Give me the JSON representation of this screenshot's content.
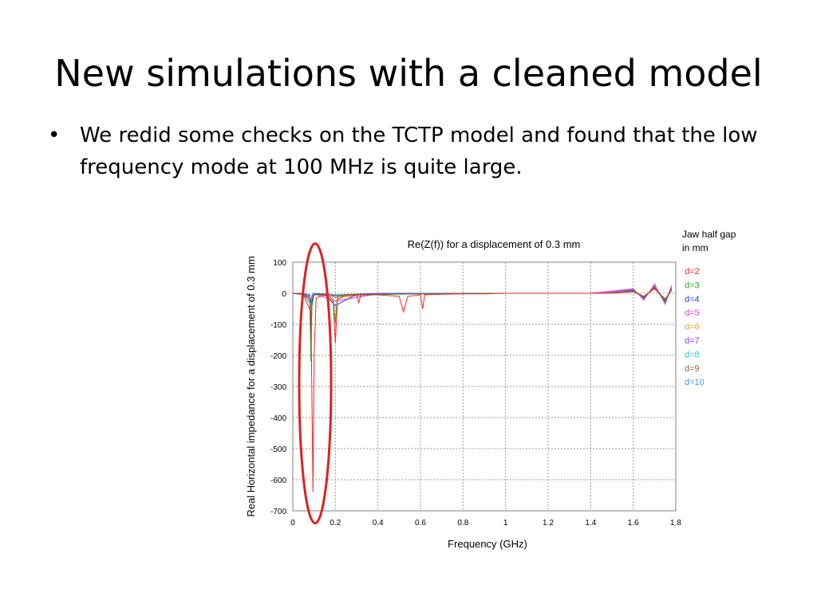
{
  "slide": {
    "title": "New simulations with a cleaned model",
    "bullets": [
      "We redid some checks on the TCTP model and found that the low frequency mode at 100 MHz is quite large."
    ],
    "bullet_marker": "•"
  },
  "chart_data": {
    "type": "line",
    "title": "Re(Z(f)) for a displacement of 0.3 mm",
    "xlabel": "Frequency (GHz)",
    "ylabel": "Real Horizontal impedance for a displacement of 0.3 mm",
    "xlim": [
      0,
      1.8
    ],
    "ylim": [
      -700,
      100
    ],
    "xticks": [
      0,
      0.2,
      0.4,
      0.6,
      0.8,
      1,
      1.2,
      1.4,
      1.6,
      1.8
    ],
    "xtick_labels": [
      "0",
      "0.2",
      "0.4",
      "0.6",
      "0.8",
      "1",
      "1.2",
      "1.4",
      "1.6",
      "1.8"
    ],
    "yticks": [
      100,
      0,
      -100,
      -200,
      -300,
      -400,
      -500,
      -600,
      -700
    ],
    "ytick_labels": [
      "100",
      "0",
      "-100",
      "-200",
      "-300",
      "-400",
      "-500",
      "-600",
      "-700"
    ],
    "grid": true,
    "legend_title": "Jaw half gap\nin mm",
    "legend_title_lines": [
      "Jaw half gap",
      "in mm"
    ],
    "legend_position": "right",
    "highlight": {
      "shape": "ellipse",
      "color": "#e02020",
      "x_range": [
        0.03,
        0.18
      ],
      "y_range": [
        -740,
        160
      ]
    },
    "series": [
      {
        "name": "d=2",
        "color": "#ff2020",
        "x": [
          0,
          0.05,
          0.085,
          0.09,
          0.095,
          0.1,
          0.11,
          0.15,
          0.19,
          0.2,
          0.21,
          0.25,
          0.3,
          0.31,
          0.32,
          0.4,
          0.5,
          0.52,
          0.54,
          0.6,
          0.61,
          0.62,
          0.7,
          0.8,
          0.9,
          1.0,
          1.1,
          1.2,
          1.3,
          1.4,
          1.5,
          1.6,
          1.65,
          1.7,
          1.75,
          1.78
        ],
        "y": [
          0,
          -5,
          -60,
          -350,
          -640,
          -200,
          -15,
          -5,
          -30,
          -160,
          -20,
          -5,
          -5,
          -30,
          -5,
          -5,
          -10,
          -60,
          -10,
          -5,
          -50,
          -5,
          -3,
          -2,
          -2,
          0,
          0,
          0,
          0,
          0,
          0,
          5,
          -10,
          15,
          -20,
          10
        ]
      },
      {
        "name": "d=3",
        "color": "#22aa22",
        "x": [
          0,
          0.05,
          0.08,
          0.085,
          0.09,
          0.1,
          0.15,
          0.19,
          0.2,
          0.21,
          0.3,
          0.5,
          0.7,
          0.9,
          1.1,
          1.3,
          1.5,
          1.6,
          1.65,
          1.7,
          1.75,
          1.78
        ],
        "y": [
          0,
          -3,
          -30,
          -220,
          -40,
          -5,
          -5,
          -20,
          -95,
          -10,
          -5,
          -3,
          -2,
          0,
          0,
          0,
          0,
          8,
          -12,
          18,
          -25,
          12
        ]
      },
      {
        "name": "d=4",
        "color": "#2244cc",
        "x": [
          0,
          0.05,
          0.08,
          0.085,
          0.09,
          0.1,
          0.15,
          0.2,
          0.3,
          0.5,
          0.7,
          0.9,
          1.1,
          1.3,
          1.5,
          1.6,
          1.65,
          1.7,
          1.75,
          1.78
        ],
        "y": [
          0,
          -2,
          -20,
          -150,
          -25,
          -3,
          -3,
          -40,
          -3,
          -2,
          -1,
          0,
          0,
          0,
          0,
          10,
          -15,
          20,
          -28,
          15
        ]
      },
      {
        "name": "d=5",
        "color": "#ff33ff",
        "x": [
          0,
          0.05,
          0.08,
          0.085,
          0.09,
          0.1,
          0.2,
          0.4,
          0.6,
          0.8,
          1.0,
          1.2,
          1.4,
          1.6,
          1.65,
          1.7,
          1.75,
          1.78
        ],
        "y": [
          0,
          -2,
          -15,
          -110,
          -20,
          -2,
          -25,
          -2,
          -1,
          0,
          0,
          0,
          0,
          12,
          -18,
          25,
          -30,
          18
        ]
      },
      {
        "name": "d=6",
        "color": "#ff9922",
        "x": [
          0,
          0.05,
          0.08,
          0.085,
          0.09,
          0.1,
          0.2,
          0.4,
          0.6,
          0.8,
          1.0,
          1.2,
          1.4,
          1.6,
          1.65,
          1.7,
          1.75,
          1.78
        ],
        "y": [
          0,
          -2,
          -12,
          -80,
          -15,
          -2,
          -15,
          -2,
          -1,
          0,
          0,
          0,
          0,
          12,
          -20,
          28,
          -32,
          20
        ]
      },
      {
        "name": "d=7",
        "color": "#9933ff",
        "x": [
          0,
          0.05,
          0.08,
          0.085,
          0.09,
          0.1,
          0.2,
          0.4,
          0.6,
          0.8,
          1.0,
          1.2,
          1.4,
          1.6,
          1.65,
          1.7,
          1.75,
          1.78
        ],
        "y": [
          0,
          -1,
          -10,
          -60,
          -12,
          -1,
          -10,
          -1,
          0,
          0,
          0,
          0,
          0,
          14,
          -22,
          30,
          -35,
          25
        ]
      },
      {
        "name": "d=8",
        "color": "#22cccc",
        "x": [
          0,
          0.05,
          0.08,
          0.085,
          0.09,
          0.1,
          0.2,
          0.4,
          0.6,
          0.8,
          1.0,
          1.2,
          1.4,
          1.6,
          1.65,
          1.7,
          1.75,
          1.78
        ],
        "y": [
          0,
          -1,
          -8,
          -45,
          -10,
          -1,
          -8,
          -1,
          0,
          0,
          0,
          0,
          0,
          10,
          -16,
          22,
          -26,
          15
        ]
      },
      {
        "name": "d=9",
        "color": "#996633",
        "x": [
          0,
          0.05,
          0.08,
          0.085,
          0.09,
          0.1,
          0.2,
          0.4,
          0.6,
          0.8,
          1.0,
          1.2,
          1.4,
          1.6,
          1.65,
          1.7,
          1.75,
          1.78
        ],
        "y": [
          0,
          -1,
          -6,
          -35,
          -8,
          -1,
          -6,
          -1,
          0,
          0,
          0,
          0,
          0,
          8,
          -14,
          18,
          -22,
          12
        ]
      },
      {
        "name": "d=10",
        "color": "#3399ff",
        "x": [
          0,
          0.05,
          0.08,
          0.085,
          0.09,
          0.1,
          0.2,
          0.4,
          0.6,
          0.8,
          1.0,
          1.2,
          1.4,
          1.6,
          1.65,
          1.7,
          1.75,
          1.78
        ],
        "y": [
          0,
          -1,
          -5,
          -28,
          -6,
          0,
          -5,
          -1,
          0,
          0,
          0,
          0,
          0,
          6,
          -10,
          14,
          -18,
          10
        ]
      }
    ]
  }
}
